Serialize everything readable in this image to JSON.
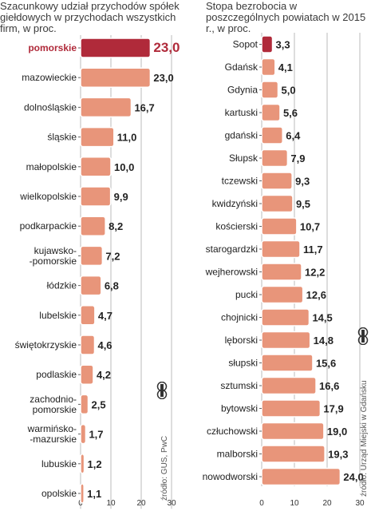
{
  "colors": {
    "bar": "#e8957a",
    "bar_highlight": "#b02a3a",
    "highlight_text": "#b02a3a",
    "gridline": "#bbbbbb"
  },
  "chart_data": [
    {
      "type": "bar",
      "orientation": "horizontal",
      "title": "Szacunkowy udział przychodów spółek giełdowych w przychodach wszystkich firm, w proc.",
      "source": "źródło: GUS, PwC",
      "xlim": [
        0,
        30
      ],
      "xticks": [
        "0",
        "10",
        "20",
        "30"
      ],
      "highlight": "pomorskie",
      "categories": [
        "pomorskie",
        "mazowieckie",
        "dolnośląskie",
        "śląskie",
        "małopolskie",
        "wielkopolskie",
        "podkarpackie",
        "kujawsko-pomorskie",
        "łódzkie",
        "lubelskie",
        "świętokrzyskie",
        "podlaskie",
        "zachodnio-pomorskie",
        "warmińsko-mazurskie",
        "lubuskie",
        "opolskie"
      ],
      "label_lines": [
        [
          "pomorskie"
        ],
        [
          "mazowieckie"
        ],
        [
          "dolnośląskie"
        ],
        [
          "śląskie"
        ],
        [
          "małopolskie"
        ],
        [
          "wielkopolskie"
        ],
        [
          "podkarpackie"
        ],
        [
          "kujawsko-",
          "-pomorskie"
        ],
        [
          "łódzkie"
        ],
        [
          "lubelskie"
        ],
        [
          "świętokrzyskie"
        ],
        [
          "podlaskie"
        ],
        [
          "zachodnio-",
          "pomorskie"
        ],
        [
          "warmińsko-",
          "-mazurskie"
        ],
        [
          "lubuskie"
        ],
        [
          "opolskie"
        ]
      ],
      "values": [
        23.0,
        23.0,
        16.7,
        11.0,
        10.0,
        9.9,
        8.2,
        7.2,
        6.8,
        4.7,
        4.6,
        4.2,
        2.5,
        1.7,
        1.2,
        1.1
      ],
      "value_labels": [
        "23,0",
        "23,0",
        "16,7",
        "11,0",
        "10,0",
        "9,9",
        "8,2",
        "7,2",
        "6,8",
        "4,7",
        "4,6",
        "4,2",
        "2,5",
        "1,7",
        "1,2",
        "1,1"
      ]
    },
    {
      "type": "bar",
      "orientation": "horizontal",
      "title": "Stopa bezrobocia w poszczególnych powiatach w 2015 r., w proc.",
      "source": "źródło: Urząd Miejski w Gdańsku",
      "xlim": [
        0,
        30
      ],
      "xticks": [
        "0",
        "10",
        "20",
        "30"
      ],
      "highlight": "Sopot",
      "categories": [
        "Sopot",
        "Gdańsk",
        "Gdynia",
        "kartuski",
        "gdański",
        "Słupsk",
        "tczewski",
        "kwidzyński",
        "kościerski",
        "starogardzki",
        "wejherowski",
        "pucki",
        "chojnicki",
        "lęborski",
        "słupski",
        "sztumski",
        "bytowski",
        "człuchowski",
        "malborski",
        "nowodworski"
      ],
      "values": [
        3.3,
        4.1,
        5.0,
        5.6,
        6.4,
        7.9,
        9.3,
        9.5,
        10.7,
        11.7,
        12.2,
        12.6,
        14.5,
        14.8,
        15.6,
        16.6,
        17.9,
        19.0,
        19.3,
        24.0
      ],
      "value_labels": [
        "3,3",
        "4,1",
        "5,0",
        "5,6",
        "6,4",
        "7,9",
        "9,3",
        "9,5",
        "10,7",
        "11,7",
        "12,2",
        "12,6",
        "14,5",
        "14,8",
        "15,6",
        "16,6",
        "17,9",
        "19,0",
        "19,3",
        "24,0"
      ]
    }
  ]
}
